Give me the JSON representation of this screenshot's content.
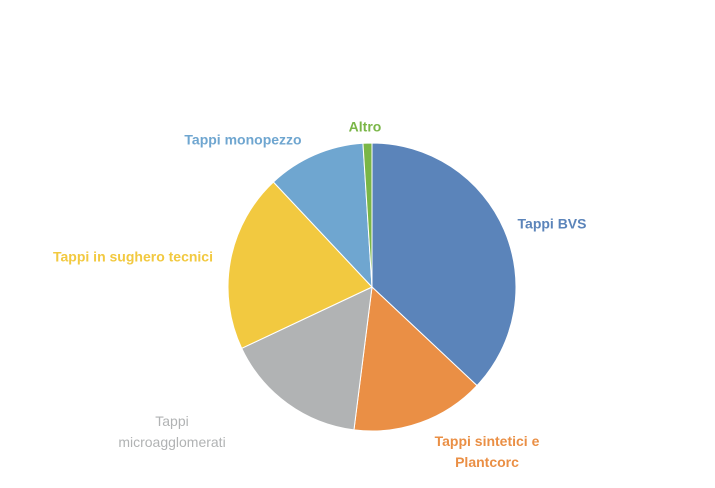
{
  "chart_data": {
    "type": "pie",
    "categories": [
      "Tappi BVS",
      "Tappi sintetici e Plantcorc",
      "Tappi microagglomerati",
      "Tappi in sughero tecnici",
      "Tappi monopezzo",
      "Altro"
    ],
    "values": [
      37,
      15,
      16,
      20,
      11,
      1
    ],
    "colors": [
      "#5b84ba",
      "#ea8f45",
      "#b1b3b4",
      "#f2c940",
      "#6fa6d0",
      "#7ab647"
    ]
  }
}
